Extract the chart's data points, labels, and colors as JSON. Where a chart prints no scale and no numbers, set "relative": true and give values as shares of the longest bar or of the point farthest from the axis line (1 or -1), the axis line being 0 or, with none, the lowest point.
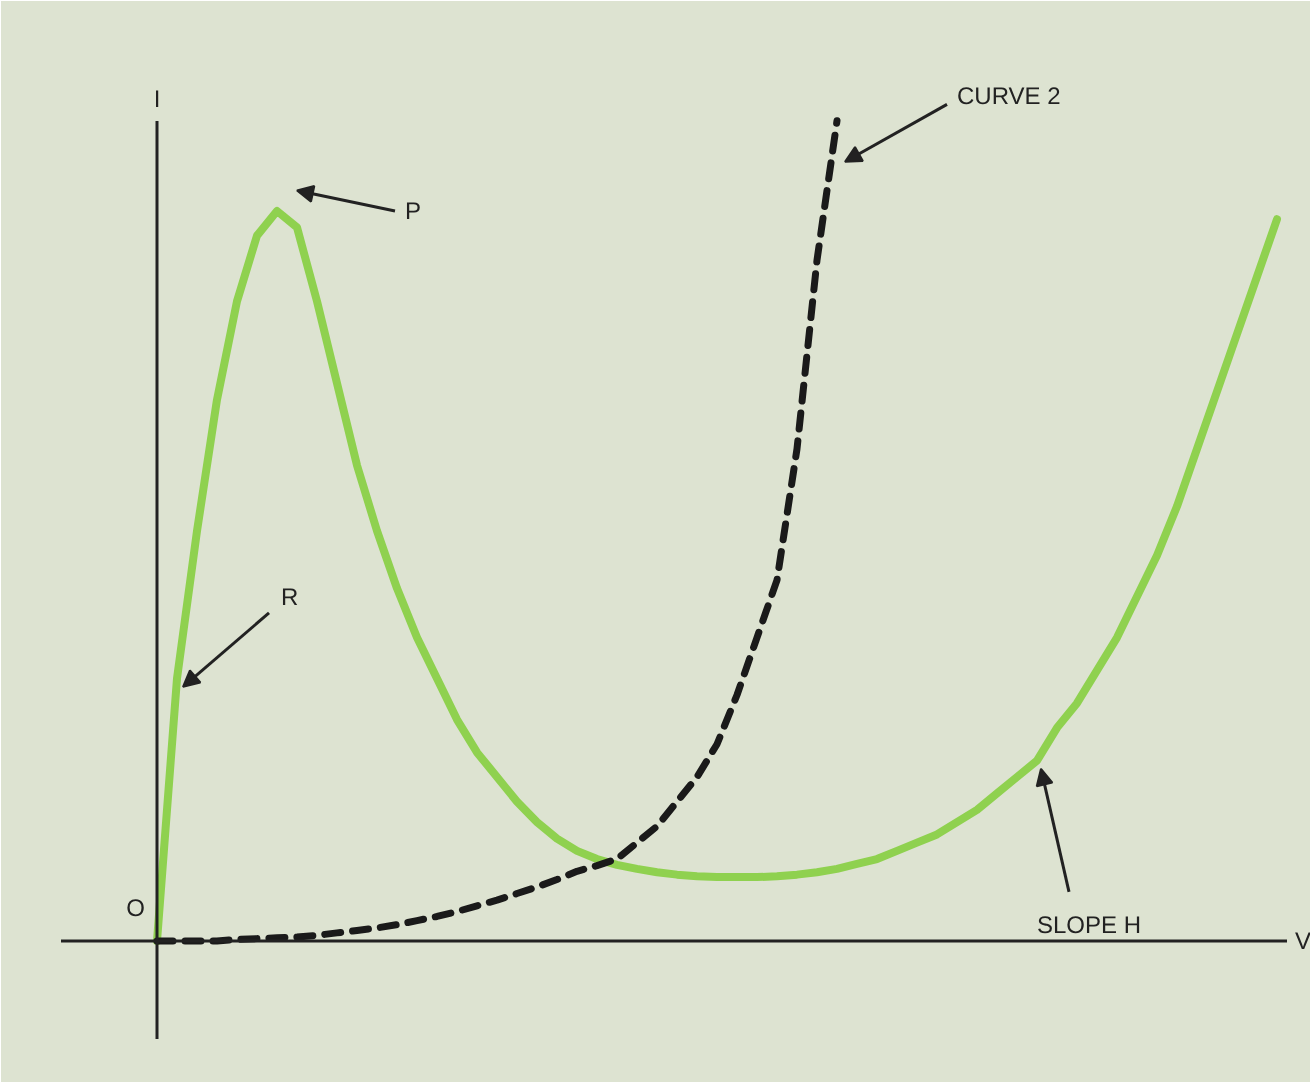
{
  "chart_data": {
    "type": "line",
    "relative": true,
    "xlabel": "V",
    "ylabel": "I",
    "categories": [
      null,
      null,
      null,
      null,
      null,
      null,
      null,
      null,
      null,
      null,
      null,
      null,
      null,
      null,
      null,
      null,
      null,
      null,
      null,
      null,
      null,
      null,
      null,
      null,
      null,
      null,
      null,
      null,
      null,
      null,
      null,
      null,
      null,
      null,
      null,
      null,
      null,
      null,
      null,
      null,
      null,
      null,
      null,
      null,
      null,
      null,
      null,
      null,
      null,
      null,
      null,
      null,
      null,
      null,
      null,
      null,
      null
    ],
    "series": [
      {
        "color": "#8fd14f",
        "line_style": "solid",
        "values": [
          0,
          0.32,
          0.5,
          0.66,
          0.78,
          0.86,
          0.89,
          0.87,
          0.78,
          0.68,
          0.58,
          0.5,
          0.43,
          0.37,
          0.32,
          0.27,
          0.23,
          0.2,
          0.17,
          0.145,
          0.125,
          0.11,
          0.1,
          0.093,
          0.088,
          0.084,
          0.081,
          0.079,
          0.078,
          0.078,
          0.078,
          0.079,
          0.081,
          0.084,
          0.088,
          0.094,
          0.1,
          0.11,
          0.12,
          0.13,
          0.145,
          0.16,
          0.18,
          0.2,
          0.22,
          0.26,
          0.29,
          0.33,
          0.37,
          0.42,
          0.47,
          0.53,
          0.6,
          0.67,
          0.74,
          0.81,
          0.88
        ]
      },
      {
        "color": "#1a1a1a",
        "line_style": "dashed",
        "values": [
          0,
          0,
          0,
          0,
          0.002,
          0.003,
          0.004,
          0.005,
          0.007,
          0.01,
          0.013,
          0.016,
          0.02,
          0.025,
          0.03,
          0.036,
          0.043,
          0.05,
          0.058,
          0.066,
          0.075,
          0.085,
          0.092,
          0.1,
          0.12,
          0.14,
          0.17,
          0.2,
          0.24,
          0.3,
          0.37,
          0.44,
          0.6,
          0.83,
          1.0,
          null,
          null,
          null,
          null,
          null,
          null,
          null,
          null,
          null,
          null,
          null,
          null,
          null,
          null,
          null,
          null,
          null,
          null,
          null,
          null,
          null,
          null
        ]
      }
    ],
    "annotations": [
      "O",
      "P",
      "R",
      "CURVE 2",
      "SLOPE H"
    ]
  }
}
